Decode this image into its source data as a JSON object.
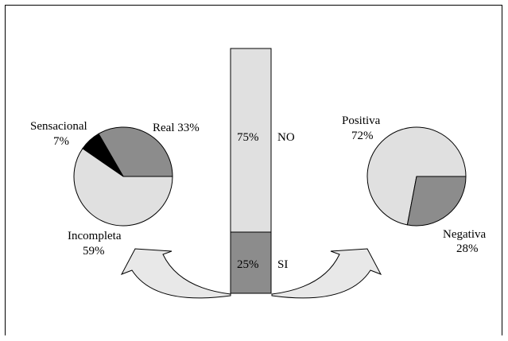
{
  "chart_data": [
    {
      "type": "bar",
      "stacked": true,
      "series": [
        {
          "name": "NO",
          "value": 75,
          "label": "75%",
          "color": "#e0e0e0"
        },
        {
          "name": "SI",
          "value": 25,
          "label": "25%",
          "color": "#8c8c8c"
        }
      ]
    },
    {
      "type": "pie",
      "slices": [
        {
          "name": "Real",
          "value": 33,
          "name_text": "Real",
          "value_text": "33%",
          "color": "#8c8c8c"
        },
        {
          "name": "Sensacional",
          "value": 7,
          "name_text": "Sensacional",
          "value_text": "7%",
          "color": "#000000"
        },
        {
          "name": "Incompleta",
          "value": 59,
          "name_text": "Incompleta",
          "value_text": "59%",
          "color": "#e0e0e0"
        }
      ]
    },
    {
      "type": "pie",
      "slices": [
        {
          "name": "Negativa",
          "value": 28,
          "name_text": "Negativa",
          "value_text": "28%",
          "color": "#8c8c8c"
        },
        {
          "name": "Positiva",
          "value": 72,
          "name_text": "Positiva",
          "value_text": "72%",
          "color": "#e0e0e0"
        }
      ]
    }
  ]
}
